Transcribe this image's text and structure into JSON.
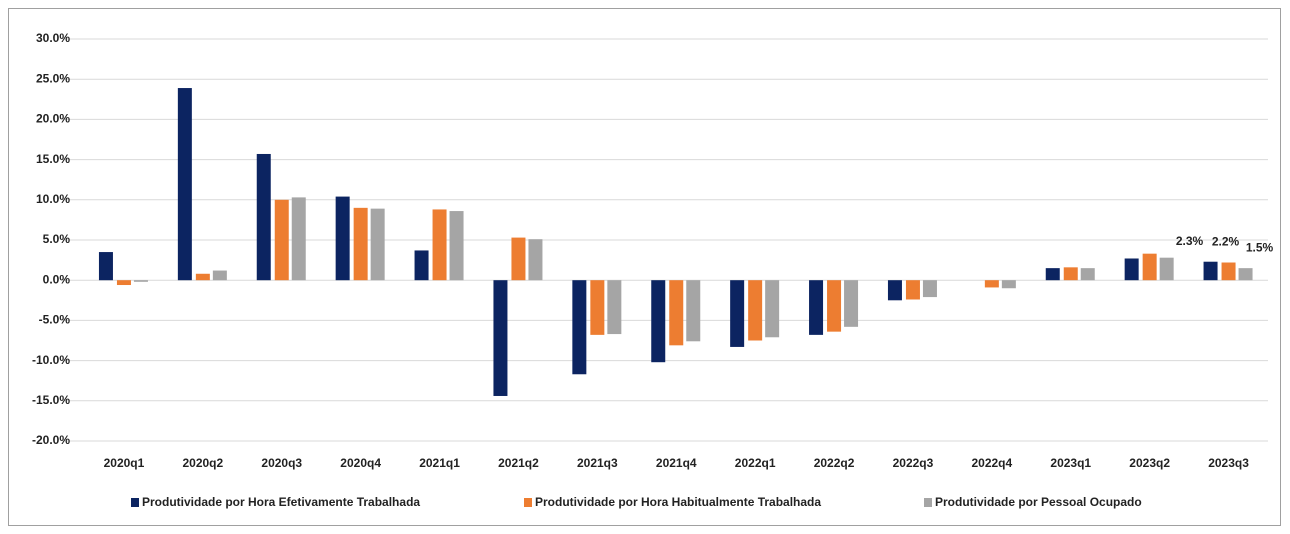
{
  "chart_data": {
    "type": "bar",
    "categories": [
      "2020q1",
      "2020q2",
      "2020q3",
      "2020q4",
      "2021q1",
      "2021q2",
      "2021q3",
      "2021q4",
      "2022q1",
      "2022q2",
      "2022q3",
      "2022q4",
      "2023q1",
      "2023q2",
      "2023q3"
    ],
    "series": [
      {
        "name": "Produtividade por Hora Efetivamente Trabalhada",
        "color": "#0c2461",
        "values": [
          3.5,
          23.9,
          15.7,
          10.4,
          3.7,
          -14.4,
          -11.7,
          -10.2,
          -8.3,
          -6.8,
          -2.5,
          0,
          1.5,
          2.7,
          2.3
        ],
        "value_labels": [
          null,
          null,
          null,
          null,
          null,
          null,
          null,
          null,
          null,
          null,
          null,
          null,
          null,
          null,
          "2.3%"
        ]
      },
      {
        "name": "Produtividade por Hora Habitualmente Trabalhada",
        "color": "#ed7d31",
        "values": [
          -0.6,
          0.8,
          10.0,
          9.0,
          8.8,
          5.3,
          -6.8,
          -8.1,
          -7.5,
          -6.4,
          -2.4,
          -0.9,
          1.6,
          3.3,
          2.2
        ],
        "value_labels": [
          null,
          null,
          null,
          null,
          null,
          null,
          null,
          null,
          null,
          null,
          null,
          null,
          null,
          null,
          "2.2%"
        ]
      },
      {
        "name": "Produtividade por Pessoal Ocupado",
        "color": "#a5a5a5",
        "values": [
          -0.2,
          1.2,
          10.3,
          8.9,
          8.6,
          5.1,
          -6.7,
          -7.6,
          -7.1,
          -5.8,
          -2.1,
          -1.0,
          1.5,
          2.8,
          1.5
        ],
        "value_labels": [
          null,
          null,
          null,
          null,
          null,
          null,
          null,
          null,
          null,
          null,
          null,
          null,
          null,
          null,
          "1.5%"
        ]
      }
    ],
    "ylim": [
      -20,
      30
    ],
    "yticks": [
      {
        "value": -20,
        "label": "-20.0%"
      },
      {
        "value": -15,
        "label": "-15.0%"
      },
      {
        "value": -10,
        "label": "-10.0%"
      },
      {
        "value": -5,
        "label": "-5.0%"
      },
      {
        "value": 0,
        "label": "0.0%"
      },
      {
        "value": 5,
        "label": "5.0%"
      },
      {
        "value": 10,
        "label": "10.0%"
      },
      {
        "value": 15,
        "label": "15.0%"
      },
      {
        "value": 20,
        "label": "20.0%"
      },
      {
        "value": 25,
        "label": "25.0%"
      },
      {
        "value": 30,
        "label": "30.0%"
      }
    ],
    "grid": true,
    "legend": "bottom"
  }
}
